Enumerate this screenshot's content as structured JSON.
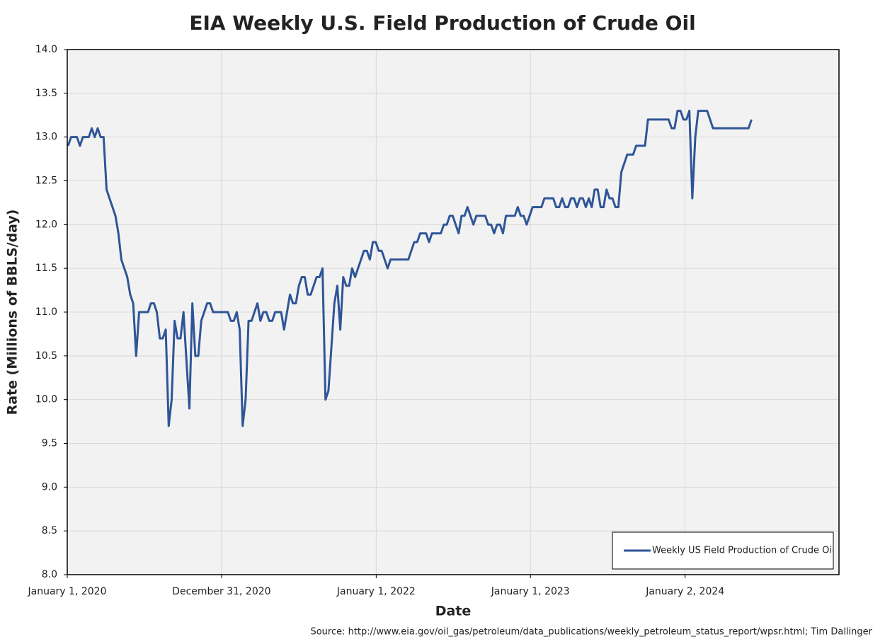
{
  "chart_data": {
    "type": "line",
    "title": "EIA Weekly U.S. Field Production of Crude Oil",
    "x_label": "Date",
    "y_label": "Rate (Millions of BBLS/day)",
    "source": "Source: http://www.eia.gov/oil_gas/petroleum/data_publications/weekly_petroleum_status_report/wpsr.html; Tim Dallinger",
    "grid": true,
    "legend": "lower right",
    "xlim": [
      "2020-01-01",
      "2024-12-31"
    ],
    "xticks": [
      {
        "value": "2020-01-01",
        "label": "January 1, 2020"
      },
      {
        "value": "2020-12-31",
        "label": "December 31, 2020"
      },
      {
        "value": "2022-01-01",
        "label": "January 1, 2022"
      },
      {
        "value": "2023-01-01",
        "label": "January 1, 2023"
      },
      {
        "value": "2024-01-02",
        "label": "January 2, 2024"
      }
    ],
    "ylim": [
      8,
      14
    ],
    "yticks": [
      {
        "value": 8,
        "label": "8.0"
      },
      8.5,
      {
        "value": 9,
        "label": "9.0"
      },
      9.5,
      {
        "value": 10,
        "label": "10.0"
      },
      10.5,
      {
        "value": 11,
        "label": "11.0"
      },
      11.5,
      {
        "value": 12,
        "label": "12.0"
      },
      12.5,
      {
        "value": 13,
        "label": "13.0"
      },
      13.5,
      {
        "value": 14,
        "label": "14.0"
      }
    ],
    "x": [
      "2020-01-03",
      "2020-01-10",
      "2020-01-24",
      "2020-01-31",
      "2020-02-07",
      "2020-02-21",
      "2020-02-28",
      "2020-03-06",
      "2020-03-13",
      "2020-03-20",
      "2020-03-27",
      "2020-04-03",
      "2020-04-24",
      "2020-05-01",
      "2020-05-08",
      "2020-05-15",
      "2020-05-22",
      "2020-05-29",
      "2020-06-05",
      "2020-06-12",
      "2020-06-19",
      "2020-07-10",
      "2020-07-17",
      "2020-07-24",
      "2020-07-31",
      "2020-08-07",
      "2020-08-14",
      "2020-08-21",
      "2020-08-28",
      "2020-09-04",
      "2020-09-11",
      "2020-09-18",
      "2020-09-25",
      "2020-10-02",
      "2020-10-16",
      "2020-10-23",
      "2020-10-30",
      "2020-11-06",
      "2020-11-13",
      "2020-11-20",
      "2020-11-27",
      "2020-12-04",
      "2020-12-11",
      "2021-01-15",
      "2021-01-22",
      "2021-01-29",
      "2021-02-05",
      "2021-02-12",
      "2021-02-19",
      "2021-02-26",
      "2021-03-05",
      "2021-03-12",
      "2021-03-19",
      "2021-03-26",
      "2021-04-02",
      "2021-04-09",
      "2021-04-16",
      "2021-04-23",
      "2021-04-30",
      "2021-05-07",
      "2021-05-21",
      "2021-05-28",
      "2021-06-04",
      "2021-06-11",
      "2021-06-18",
      "2021-06-25",
      "2021-07-02",
      "2021-07-09",
      "2021-07-16",
      "2021-07-23",
      "2021-07-30",
      "2021-08-06",
      "2021-08-13",
      "2021-08-20",
      "2021-08-27",
      "2021-09-03",
      "2021-09-10",
      "2021-09-17",
      "2021-09-24",
      "2021-10-01",
      "2021-10-08",
      "2021-10-15",
      "2021-10-22",
      "2021-10-29",
      "2021-11-05",
      "2021-11-12",
      "2021-11-19",
      "2021-11-26",
      "2021-12-03",
      "2021-12-10",
      "2021-12-17",
      "2021-12-24",
      "2021-12-31",
      "2022-01-07",
      "2022-01-14",
      "2022-01-21",
      "2022-01-28",
      "2022-02-04",
      "2022-03-18",
      "2022-03-25",
      "2022-04-01",
      "2022-04-08",
      "2022-04-15",
      "2022-04-29",
      "2022-05-06",
      "2022-05-13",
      "2022-06-03",
      "2022-06-10",
      "2022-06-17",
      "2022-06-24",
      "2022-07-01",
      "2022-07-08",
      "2022-07-15",
      "2022-07-22",
      "2022-07-29",
      "2022-08-05",
      "2022-08-12",
      "2022-08-19",
      "2022-08-26",
      "2022-09-16",
      "2022-09-23",
      "2022-09-30",
      "2022-10-07",
      "2022-10-14",
      "2022-10-21",
      "2022-10-28",
      "2022-11-04",
      "2022-11-25",
      "2022-12-02",
      "2022-12-09",
      "2022-12-16",
      "2022-12-23",
      "2022-12-30",
      "2023-01-06",
      "2023-01-27",
      "2023-02-03",
      "2023-02-24",
      "2023-03-03",
      "2023-03-10",
      "2023-03-17",
      "2023-03-24",
      "2023-03-31",
      "2023-04-07",
      "2023-04-14",
      "2023-04-21",
      "2023-04-28",
      "2023-05-05",
      "2023-05-12",
      "2023-05-19",
      "2023-05-26",
      "2023-06-02",
      "2023-06-09",
      "2023-06-16",
      "2023-06-23",
      "2023-06-30",
      "2023-07-07",
      "2023-07-14",
      "2023-07-21",
      "2023-07-28",
      "2023-08-04",
      "2023-08-11",
      "2023-08-18",
      "2023-09-01",
      "2023-09-08",
      "2023-09-29",
      "2023-10-06",
      "2023-11-24",
      "2023-12-01",
      "2023-12-08",
      "2023-12-15",
      "2023-12-22",
      "2023-12-29",
      "2024-01-05",
      "2024-01-12",
      "2024-01-19",
      "2024-01-26",
      "2024-02-02",
      "2024-02-23",
      "2024-03-01",
      "2024-03-08",
      "2024-05-31",
      "2024-06-07"
    ],
    "series": [
      {
        "name": "Weekly US Field Production of Crude Oil",
        "color": "#2f5597",
        "values": [
          12.9,
          13.0,
          13.0,
          12.9,
          13.0,
          13.0,
          13.1,
          13.0,
          13.1,
          13.0,
          13.0,
          12.4,
          12.1,
          11.9,
          11.6,
          11.5,
          11.4,
          11.2,
          11.1,
          10.5,
          11.0,
          11.0,
          11.1,
          11.1,
          11.0,
          10.7,
          10.7,
          10.8,
          9.7,
          10.0,
          10.9,
          10.7,
          10.7,
          11.0,
          9.9,
          11.1,
          10.5,
          10.5,
          10.9,
          11.0,
          11.1,
          11.1,
          11.0,
          11.0,
          10.9,
          10.9,
          11.0,
          10.8,
          9.7,
          10.0,
          10.9,
          10.9,
          11.0,
          11.1,
          10.9,
          11.0,
          11.0,
          10.9,
          10.9,
          11.0,
          11.0,
          10.8,
          11.0,
          11.2,
          11.1,
          11.1,
          11.3,
          11.4,
          11.4,
          11.2,
          11.2,
          11.3,
          11.4,
          11.4,
          11.5,
          10.0,
          10.1,
          10.6,
          11.1,
          11.3,
          10.8,
          11.4,
          11.3,
          11.3,
          11.5,
          11.4,
          11.5,
          11.6,
          11.7,
          11.7,
          11.6,
          11.8,
          11.8,
          11.7,
          11.7,
          11.6,
          11.5,
          11.6,
          11.6,
          11.7,
          11.8,
          11.8,
          11.9,
          11.9,
          11.8,
          11.9,
          11.9,
          12.0,
          12.0,
          12.1,
          12.1,
          12.0,
          11.9,
          12.1,
          12.1,
          12.2,
          12.1,
          12.0,
          12.1,
          12.1,
          12.0,
          12.0,
          11.9,
          12.0,
          12.0,
          11.9,
          12.1,
          12.1,
          12.2,
          12.1,
          12.1,
          12.0,
          12.1,
          12.2,
          12.2,
          12.3,
          12.3,
          12.2,
          12.2,
          12.3,
          12.2,
          12.2,
          12.3,
          12.3,
          12.2,
          12.3,
          12.3,
          12.2,
          12.3,
          12.2,
          12.4,
          12.4,
          12.2,
          12.2,
          12.4,
          12.3,
          12.3,
          12.2,
          12.2,
          12.6,
          12.7,
          12.8,
          12.8,
          12.9,
          12.9,
          13.2,
          13.2,
          13.1,
          13.1,
          13.3,
          13.3,
          13.2,
          13.2,
          13.3,
          12.3,
          13.0,
          13.3,
          13.3,
          13.2,
          13.1,
          13.1,
          13.2
        ]
      }
    ]
  }
}
